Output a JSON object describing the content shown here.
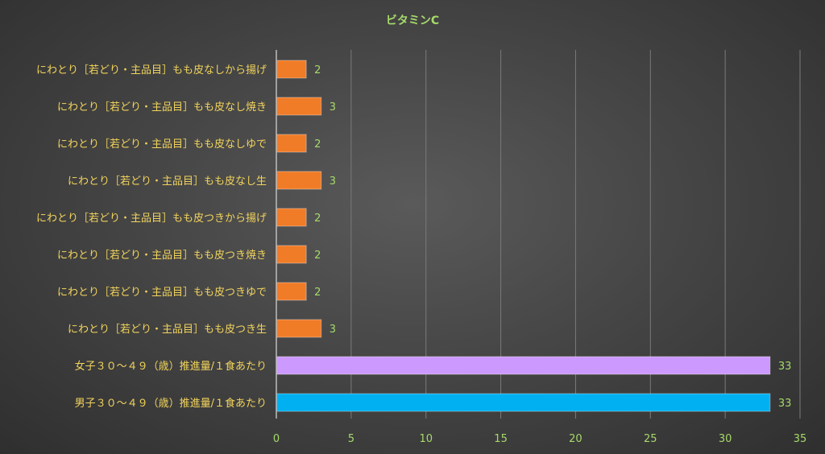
{
  "chart_data": {
    "type": "bar",
    "orientation": "horizontal",
    "title": "ビタミンC",
    "xlim": [
      0,
      35
    ],
    "xticks": [
      0,
      5,
      10,
      15,
      20,
      25,
      30,
      35
    ],
    "grid": true,
    "categories": [
      "にわとり［若どり・主品目］もも皮なしから揚げ",
      "にわとり［若どり・主品目］もも皮なし焼き",
      "にわとり［若どり・主品目］もも皮なしゆで",
      "にわとり［若どり・主品目］もも皮なし生",
      "にわとり［若どり・主品目］もも皮つきから揚げ",
      "にわとり［若どり・主品目］もも皮つき焼き",
      "にわとり［若どり・主品目］もも皮つきゆで",
      "にわとり［若どり・主品目］もも皮つき生",
      "女子３０～４９（歳）推進量/１食あたり",
      "男子３０～４９（歳）推進量/１食あたり"
    ],
    "values": [
      2,
      3,
      2,
      3,
      2,
      2,
      2,
      3,
      33,
      33
    ],
    "colors": [
      "#f07c28",
      "#f07c28",
      "#f07c28",
      "#f07c28",
      "#f07c28",
      "#f07c28",
      "#f07c28",
      "#f07c28",
      "#cc99ff",
      "#00b0f0"
    ]
  }
}
